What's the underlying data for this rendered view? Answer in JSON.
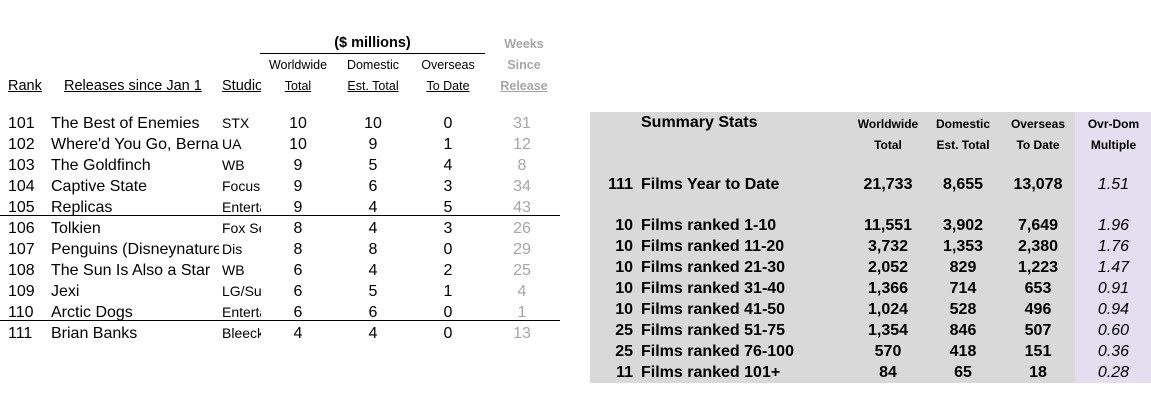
{
  "header": {
    "currency_group": "($ millions)",
    "weeks_line1": "Weeks",
    "weeks_line2": "Since",
    "weeks_line3": "Release",
    "col_rank": "Rank",
    "col_release": "Releases since Jan 1",
    "col_studio": "Studio",
    "ww_line1": "Worldwide",
    "ww_line2": "Total",
    "dom_line1": "Domestic",
    "dom_line2": "Est. Total",
    "ovr_line1": "Overseas",
    "ovr_line2": "To Date"
  },
  "films": [
    {
      "rank": "101",
      "title": "The Best of Enemies",
      "studio": "STX",
      "worldwide": "10",
      "domestic": "10",
      "overseas": "0",
      "weeks": "31"
    },
    {
      "rank": "102",
      "title": "Where'd You Go, Bernadette",
      "studio": "UA",
      "worldwide": "10",
      "domestic": "9",
      "overseas": "1",
      "weeks": "12"
    },
    {
      "rank": "103",
      "title": "The Goldfinch",
      "studio": "WB",
      "worldwide": "9",
      "domestic": "5",
      "overseas": "4",
      "weeks": "8"
    },
    {
      "rank": "104",
      "title": "Captive State",
      "studio": "Focus",
      "worldwide": "9",
      "domestic": "6",
      "overseas": "3",
      "weeks": "34"
    },
    {
      "rank": "105",
      "title": "Replicas",
      "studio": "Entertainment Studios",
      "worldwide": "9",
      "domestic": "4",
      "overseas": "5",
      "weeks": "43"
    },
    {
      "rank": "106",
      "title": "Tolkien",
      "studio": "Fox Searchlight",
      "worldwide": "8",
      "domestic": "4",
      "overseas": "3",
      "weeks": "26"
    },
    {
      "rank": "107",
      "title": "Penguins (Disneynature)",
      "studio": "Dis",
      "worldwide": "8",
      "domestic": "8",
      "overseas": "0",
      "weeks": "29"
    },
    {
      "rank": "108",
      "title": "The Sun Is Also a Star",
      "studio": "WB",
      "worldwide": "6",
      "domestic": "4",
      "overseas": "2",
      "weeks": "25"
    },
    {
      "rank": "109",
      "title": "Jexi",
      "studio": "LG/Summit",
      "worldwide": "6",
      "domestic": "5",
      "overseas": "1",
      "weeks": "4"
    },
    {
      "rank": "110",
      "title": "Arctic Dogs",
      "studio": "Entertainment Studios",
      "worldwide": "6",
      "domestic": "6",
      "overseas": "0",
      "weeks": "1"
    },
    {
      "rank": "111",
      "title": "Brian Banks",
      "studio": "Bleecker Street",
      "worldwide": "4",
      "domestic": "4",
      "overseas": "0",
      "weeks": "13"
    }
  ],
  "summary": {
    "title": "Summary Stats",
    "ww_line1": "Worldwide",
    "ww_line2": "Total",
    "dom_line1": "Domestic",
    "dom_line2": "Est. Total",
    "ovr_line1": "Overseas",
    "ovr_line2": "To Date",
    "mult_line1": "Ovr-Dom",
    "mult_line2": "Multiple",
    "rows": [
      {
        "count": "111",
        "label": "Films Year to Date",
        "worldwide": "21,733",
        "domestic": "8,655",
        "overseas": "13,078",
        "multiple": "1.51"
      },
      {
        "count": "10",
        "label": "Films ranked 1-10",
        "worldwide": "11,551",
        "domestic": "3,902",
        "overseas": "7,649",
        "multiple": "1.96"
      },
      {
        "count": "10",
        "label": "Films ranked 11-20",
        "worldwide": "3,732",
        "domestic": "1,353",
        "overseas": "2,380",
        "multiple": "1.76"
      },
      {
        "count": "10",
        "label": "Films ranked 21-30",
        "worldwide": "2,052",
        "domestic": "829",
        "overseas": "1,223",
        "multiple": "1.47"
      },
      {
        "count": "10",
        "label": "Films ranked 31-40",
        "worldwide": "1,366",
        "domestic": "714",
        "overseas": "653",
        "multiple": "0.91"
      },
      {
        "count": "10",
        "label": "Films ranked 41-50",
        "worldwide": "1,024",
        "domestic": "528",
        "overseas": "496",
        "multiple": "0.94"
      },
      {
        "count": "25",
        "label": "Films ranked 51-75",
        "worldwide": "1,354",
        "domestic": "846",
        "overseas": "507",
        "multiple": "0.60"
      },
      {
        "count": "25",
        "label": "Films ranked 76-100",
        "worldwide": "570",
        "domestic": "418",
        "overseas": "151",
        "multiple": "0.36"
      },
      {
        "count": "11",
        "label": "Films ranked 101+",
        "worldwide": "84",
        "domestic": "65",
        "overseas": "18",
        "multiple": "0.28"
      }
    ]
  }
}
